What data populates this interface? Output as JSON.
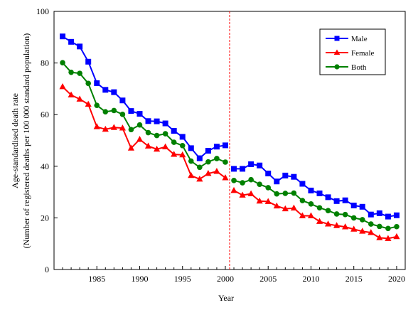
{
  "chart_data": {
    "type": "line",
    "title": "",
    "xlabel": "Year",
    "ylabel": "Age-standardised death rate",
    "ylabel_line2": "(Number of registered deaths per 100 000 standard population)",
    "xlim": [
      1980,
      2021
    ],
    "ylim": [
      0,
      100
    ],
    "x_ticks": [
      1985,
      1990,
      1995,
      2000,
      2005,
      2010,
      2015,
      2020
    ],
    "y_ticks": [
      0,
      20,
      40,
      60,
      80,
      100
    ],
    "x_tick_labels": [
      "1985",
      "1990",
      "1995",
      "2000",
      "2005",
      "2010",
      "2015",
      "2020"
    ],
    "y_tick_labels": [
      "0",
      "20",
      "40",
      "60",
      "80",
      "100"
    ],
    "grid": false,
    "legend_position": "top-right",
    "break_year": 2001,
    "series": [
      {
        "name": "Male",
        "color": "#0000ff",
        "marker": "square",
        "segments": [
          {
            "x": [
              1981,
              1982,
              1983,
              1984,
              1985,
              1986,
              1987,
              1988,
              1989,
              1990,
              1991,
              1992,
              1993,
              1994,
              1995,
              1996,
              1997,
              1998,
              1999,
              2000
            ],
            "y": [
              90.3,
              88.2,
              86.4,
              80.5,
              72.2,
              69.6,
              68.7,
              65.5,
              61.4,
              60.3,
              57.5,
              57.4,
              56.6,
              53.7,
              51.4,
              47.0,
              43.1,
              46.0,
              47.6,
              48.1
            ]
          },
          {
            "x": [
              2001,
              2002,
              2003,
              2004,
              2005,
              2006,
              2007,
              2008,
              2009,
              2010,
              2011,
              2012,
              2013,
              2014,
              2015,
              2016,
              2017,
              2018,
              2019,
              2020
            ],
            "y": [
              39.0,
              39.0,
              40.8,
              40.3,
              37.2,
              34.1,
              36.4,
              35.9,
              33.2,
              30.6,
              29.5,
              28.0,
              26.5,
              26.8,
              24.8,
              24.3,
              21.3,
              21.8,
              20.5,
              21.0
            ]
          }
        ]
      },
      {
        "name": "Female",
        "color": "#ff0000",
        "marker": "triangle",
        "segments": [
          {
            "x": [
              1981,
              1982,
              1983,
              1984,
              1985,
              1986,
              1987,
              1988,
              1989,
              1990,
              1991,
              1992,
              1993,
              1994,
              1995,
              1996,
              1997,
              1998,
              1999,
              2000
            ],
            "y": [
              70.8,
              67.6,
              66.0,
              64.0,
              55.3,
              54.3,
              55.0,
              54.8,
              47.0,
              50.4,
              47.8,
              46.6,
              47.5,
              44.6,
              44.4,
              36.4,
              35.0,
              37.2,
              38.0,
              35.5
            ]
          },
          {
            "x": [
              2001,
              2002,
              2003,
              2004,
              2005,
              2006,
              2007,
              2008,
              2009,
              2010,
              2011,
              2012,
              2013,
              2014,
              2015,
              2016,
              2017,
              2018,
              2019,
              2020
            ],
            "y": [
              30.6,
              28.8,
              29.3,
              26.5,
              26.3,
              24.6,
              23.5,
              23.8,
              20.8,
              20.8,
              18.6,
              17.6,
              17.0,
              16.5,
              15.6,
              14.8,
              14.3,
              12.3,
              12.0,
              12.7
            ]
          }
        ]
      },
      {
        "name": "Both",
        "color": "#008000",
        "marker": "circle",
        "segments": [
          {
            "x": [
              1981,
              1982,
              1983,
              1984,
              1985,
              1986,
              1987,
              1988,
              1989,
              1990,
              1991,
              1992,
              1993,
              1994,
              1995,
              1996,
              1997,
              1998,
              1999,
              2000
            ],
            "y": [
              80.1,
              76.4,
              76.0,
              72.1,
              63.6,
              61.1,
              61.6,
              60.1,
              54.2,
              56.0,
              53.0,
              51.9,
              52.6,
              49.3,
              48.0,
              42.0,
              39.6,
              41.7,
              43.0,
              41.6
            ]
          },
          {
            "x": [
              2001,
              2002,
              2003,
              2004,
              2005,
              2006,
              2007,
              2008,
              2009,
              2010,
              2011,
              2012,
              2013,
              2014,
              2015,
              2016,
              2017,
              2018,
              2019,
              2020
            ],
            "y": [
              34.5,
              33.6,
              34.8,
              33.0,
              31.7,
              29.3,
              29.5,
              29.6,
              26.7,
              25.4,
              23.9,
              22.8,
              21.5,
              21.3,
              20.0,
              19.3,
              17.6,
              16.7,
              15.9,
              16.6
            ]
          }
        ]
      }
    ]
  }
}
